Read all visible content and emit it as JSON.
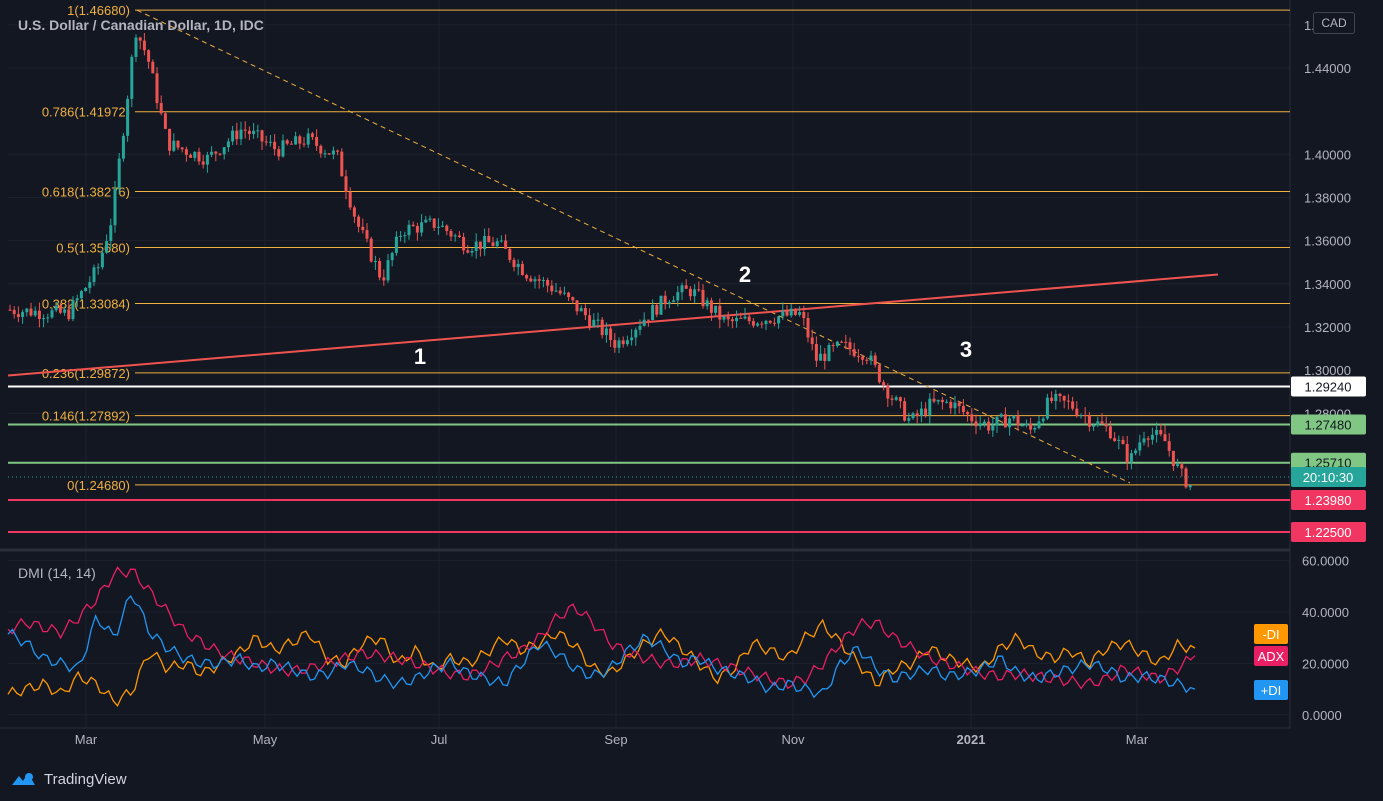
{
  "chart_data": [
    {
      "type": "candlestick",
      "title": "U.S. Dollar / Canadian Dollar, 1D, IDC",
      "y_range": [
        1.2185,
        1.4715
      ],
      "y_ticks": [
        "1.46000",
        "1.44000",
        "1.40000",
        "1.38000",
        "1.36000",
        "1.34000",
        "1.32000",
        "1.30000",
        "1.28000"
      ],
      "x_ticks": [
        "Mar",
        "May",
        "Jul",
        "Sep",
        "Nov",
        "2021",
        "Mar"
      ],
      "currency_label": "CAD",
      "fib_levels": [
        {
          "label": "1(1.46680)",
          "value": 1.4668
        },
        {
          "label": "0.786(1.41972)",
          "value": 1.41972
        },
        {
          "label": "0.618(1.38276)",
          "value": 1.38276
        },
        {
          "label": "0.5(1.35680)",
          "value": 1.3568
        },
        {
          "label": "0.382(1.33084)",
          "value": 1.33084
        },
        {
          "label": "0.236(1.29872)",
          "value": 1.29872
        },
        {
          "label": "0.146(1.27892)",
          "value": 1.27892
        },
        {
          "label": "0(1.24680)",
          "value": 1.2468
        }
      ],
      "price_levels": [
        {
          "label": "1.29240",
          "value": 1.2924,
          "color": "#ffffff",
          "text_color": "#131722"
        },
        {
          "label": "1.27480",
          "value": 1.2748,
          "color": "#81c784",
          "text_color": "#131722"
        },
        {
          "label": "1.25710",
          "value": 1.2571,
          "color": "#81c784",
          "text_color": "#131722"
        },
        {
          "label": "1.23980",
          "value": 1.2398,
          "color": "#f23662",
          "text_color": "#ffffff"
        },
        {
          "label": "1.22500",
          "value": 1.225,
          "color": "#f23662",
          "text_color": "#ffffff"
        }
      ],
      "countdown_label": "20:10:30",
      "current_price": 1.2505,
      "wave_labels": [
        "1",
        "2",
        "3"
      ],
      "colors": {
        "up": "#26a69a",
        "down": "#ef5350",
        "fib": "#f0b040",
        "trend": "#ef5350"
      },
      "trend_line": [
        {
          "date_index": 0,
          "value": 1.2975
        },
        {
          "date_index": 1,
          "value": 1.3443
        }
      ],
      "dashed_trend": [
        {
          "value": 1.4668
        },
        {
          "value": 1.2468
        }
      ],
      "price_path": [
        [
          0,
          1.328
        ],
        [
          0.06,
          1.326
        ],
        [
          0.09,
          1.347
        ],
        [
          0.105,
          1.372
        ],
        [
          0.128,
          1.458
        ],
        [
          0.14,
          1.445
        ],
        [
          0.16,
          1.405
        ],
        [
          0.2,
          1.398
        ],
        [
          0.235,
          1.412
        ],
        [
          0.27,
          1.402
        ],
        [
          0.3,
          1.407
        ],
        [
          0.33,
          1.399
        ],
        [
          0.35,
          1.368
        ],
        [
          0.375,
          1.342
        ],
        [
          0.395,
          1.365
        ],
        [
          0.43,
          1.368
        ],
        [
          0.46,
          1.358
        ],
        [
          0.49,
          1.359
        ],
        [
          0.52,
          1.345
        ],
        [
          0.55,
          1.337
        ],
        [
          0.58,
          1.325
        ],
        [
          0.61,
          1.312
        ],
        [
          0.635,
          1.323
        ],
        [
          0.665,
          1.335
        ],
        [
          0.685,
          1.337
        ],
        [
          0.72,
          1.322
        ],
        [
          0.745,
          1.323
        ],
        [
          0.775,
          1.325
        ],
        [
          0.795,
          1.326
        ],
        [
          0.81,
          1.305
        ],
        [
          0.835,
          1.311
        ],
        [
          0.86,
          1.308
        ],
        [
          0.885,
          1.288
        ],
        [
          0.905,
          1.276
        ],
        [
          0.925,
          1.284
        ],
        [
          0.945,
          1.285
        ],
        [
          0.965,
          1.278
        ],
        [
          0.985,
          1.274
        ],
        [
          1.005,
          1.278
        ],
        [
          1.025,
          1.272
        ],
        [
          1.045,
          1.286
        ],
        [
          1.065,
          1.284
        ],
        [
          1.085,
          1.277
        ],
        [
          1.105,
          1.272
        ],
        [
          1.125,
          1.258
        ],
        [
          1.14,
          1.272
        ],
        [
          1.16,
          1.267
        ],
        [
          1.175,
          1.252
        ],
        [
          1.19,
          1.244
        ]
      ]
    },
    {
      "type": "line",
      "title": "DMI (14, 14)",
      "y_range": [
        -2,
        61
      ],
      "y_ticks": [
        "60.0000",
        "40.0000",
        "20.0000",
        "0.0000"
      ],
      "series": [
        {
          "name": "-DI",
          "color": "#ff9800",
          "end_value": 26.5,
          "values": [
            8,
            10,
            12,
            8,
            15,
            12,
            5,
            9,
            25,
            18,
            20,
            16,
            20,
            24,
            30,
            25,
            28,
            32,
            22,
            20,
            28,
            30,
            20,
            25,
            18,
            22,
            20,
            24,
            30,
            25,
            28,
            32,
            27,
            18,
            16,
            22,
            28,
            32,
            26,
            20,
            14,
            18,
            28,
            25,
            22,
            30,
            35,
            28,
            20,
            12,
            18,
            20,
            26,
            22,
            20,
            18,
            26,
            30,
            24,
            22,
            25,
            20,
            26,
            28,
            24,
            20,
            27,
            26
          ]
        },
        {
          "name": "ADX",
          "color": "#e91e63",
          "end_value": 23.5,
          "values": [
            33,
            36,
            34,
            32,
            38,
            45,
            55,
            56,
            48,
            40,
            32,
            28,
            24,
            22,
            20,
            18,
            17,
            18,
            20,
            22,
            24,
            23,
            22,
            20,
            18,
            16,
            15,
            18,
            22,
            25,
            30,
            38,
            42,
            36,
            28,
            24,
            22,
            20,
            20,
            22,
            20,
            18,
            16,
            14,
            12,
            14,
            20,
            28,
            35,
            36,
            30,
            26,
            22,
            20,
            18,
            16,
            15,
            16,
            15,
            14,
            13,
            12,
            14,
            18,
            16,
            14,
            18,
            23
          ]
        },
        {
          "name": "+DI",
          "color": "#2196f3",
          "end_value": 10,
          "values": [
            32,
            28,
            22,
            20,
            18,
            38,
            30,
            48,
            32,
            26,
            22,
            20,
            20,
            22,
            18,
            20,
            18,
            15,
            16,
            20,
            18,
            14,
            12,
            14,
            18,
            20,
            16,
            14,
            12,
            20,
            28,
            24,
            18,
            15,
            18,
            25,
            30,
            26,
            20,
            22,
            18,
            16,
            14,
            10,
            12,
            10,
            8,
            20,
            26,
            18,
            14,
            16,
            18,
            15,
            16,
            18,
            22,
            16,
            14,
            16,
            18,
            20,
            18,
            14,
            15,
            14,
            12,
            10
          ]
        }
      ]
    }
  ],
  "branding": {
    "name": "TradingView"
  }
}
